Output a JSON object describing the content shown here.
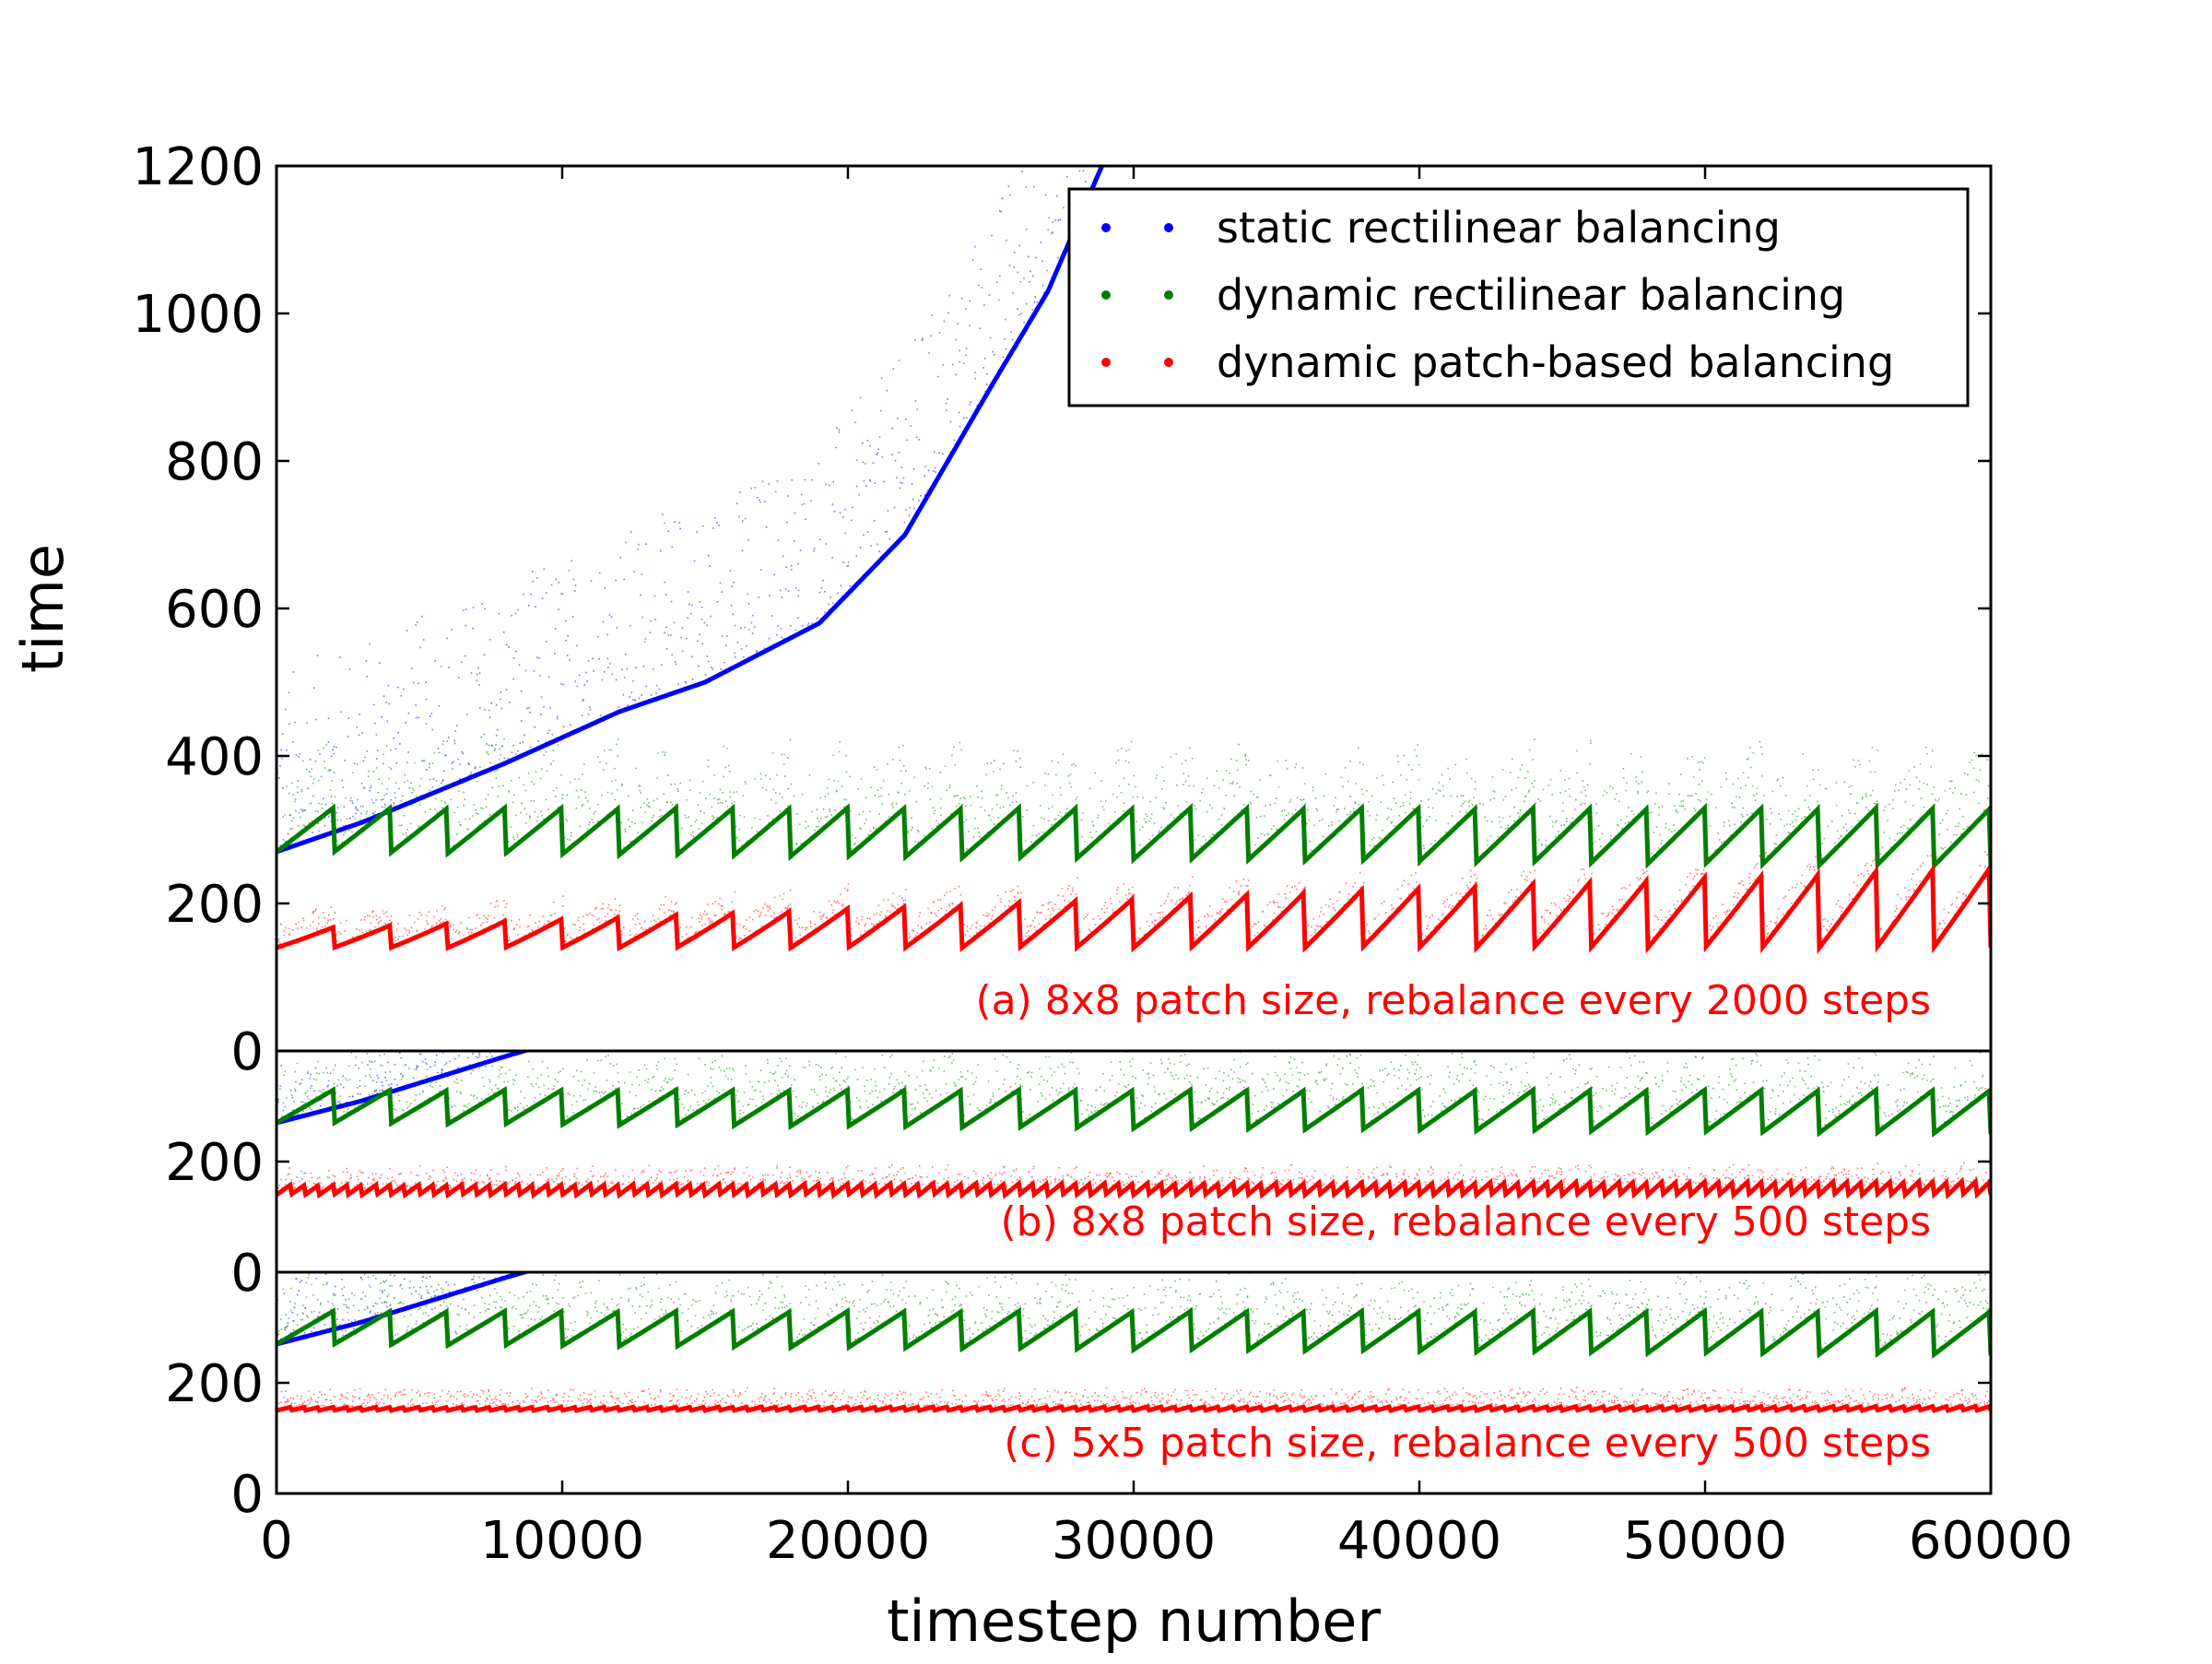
{
  "chart_data": {
    "type": "scatter",
    "xlabel": "timestep number",
    "ylabel": "time",
    "xlim": [
      0,
      60000
    ],
    "x_ticks": [
      0,
      10000,
      20000,
      30000,
      40000,
      50000,
      60000
    ],
    "x_tick_labels": [
      "0",
      "10000",
      "20000",
      "30000",
      "40000",
      "50000",
      "60000"
    ],
    "colors": {
      "static": "#0000ff",
      "dynamic_rect": "#007f00",
      "patch": "#ff0000",
      "annotation": "#ff0000"
    },
    "legend": {
      "placement": "top-right of panel (a)",
      "entries": [
        {
          "label": "static rectilinear balancing",
          "color": "#0000ff"
        },
        {
          "label": "dynamic rectilinear balancing",
          "color": "#007f00"
        },
        {
          "label": "dynamic patch-based balancing",
          "color": "#ff0000"
        }
      ]
    },
    "panels": [
      {
        "id": "a",
        "annotation": "(a) 8x8 patch size, rebalance every 2000 steps",
        "ylim": [
          0,
          1200
        ],
        "y_ticks": [
          0,
          200,
          400,
          600,
          800,
          1000,
          1200
        ],
        "y_tick_labels": [
          "0",
          "200",
          "400",
          "600",
          "800",
          "1000",
          "1200"
        ],
        "series": [
          {
            "name": "static rectilinear balancing",
            "key": "static",
            "baseline": {
              "x": [
                0,
                3000,
                8000,
                12000,
                15000,
                19000,
                22000,
                25000,
                27000,
                28000,
                29000
              ],
              "y": [
                270,
                310,
                390,
                460,
                500,
                580,
                700,
                900,
                1030,
                1120,
                1210
              ]
            }
          },
          {
            "name": "dynamic rectilinear balancing",
            "key": "dynamic_rect",
            "period": 2000,
            "min_start": 270,
            "min_end": 250
          },
          {
            "name": "dynamic patch-based balancing",
            "key": "patch",
            "period": 2000,
            "min": 140,
            "peak_start": 165,
            "peak_end": 250
          }
        ]
      },
      {
        "id": "b",
        "annotation": "(b) 8x8 patch size, rebalance every 500 steps",
        "ylim": [
          0,
          400
        ],
        "y_ticks": [
          0,
          200
        ],
        "y_tick_labels": [
          "0",
          "200"
        ],
        "series": [
          {
            "name": "static rectilinear balancing",
            "key": "static",
            "baseline": {
              "x": [
                0,
                3000,
                8000,
                9000
              ],
              "y": [
                270,
                310,
                390,
                405
              ]
            }
          },
          {
            "name": "dynamic rectilinear balancing",
            "key": "dynamic_rect",
            "period": 2000,
            "min_start": 270,
            "min_end": 250
          },
          {
            "name": "dynamic patch-based balancing",
            "key": "patch",
            "period": 500,
            "min": 140,
            "peak_start": 158,
            "peak_end": 165
          }
        ]
      },
      {
        "id": "c",
        "annotation": "(c) 5x5 patch size, rebalance every 500 steps",
        "ylim": [
          0,
          400
        ],
        "y_ticks": [
          0,
          200
        ],
        "y_tick_labels": [
          "0",
          "200"
        ],
        "series": [
          {
            "name": "static rectilinear balancing",
            "key": "static",
            "baseline": {
              "x": [
                0,
                3000,
                8000,
                9000
              ],
              "y": [
                270,
                310,
                390,
                405
              ]
            }
          },
          {
            "name": "dynamic rectilinear balancing",
            "key": "dynamic_rect",
            "period": 2000,
            "min_start": 270,
            "min_end": 250
          },
          {
            "name": "dynamic patch-based balancing",
            "key": "patch",
            "period": 500,
            "min": 150,
            "peak_start": 156,
            "peak_end": 158
          }
        ]
      }
    ]
  }
}
